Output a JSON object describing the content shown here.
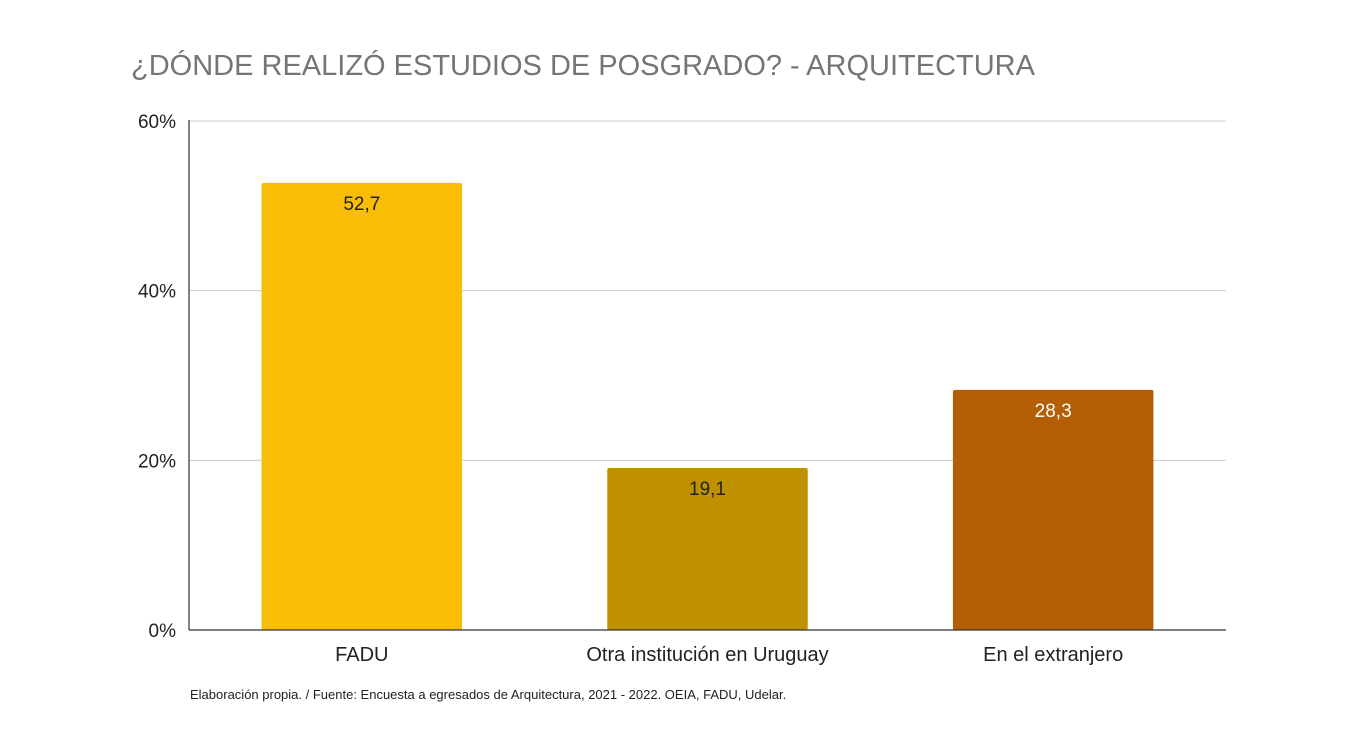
{
  "chart_data": {
    "type": "bar",
    "title": "¿DÓNDE REALIZÓ ESTUDIOS DE POSGRADO? - ARQUITECTURA",
    "categories": [
      "FADU",
      "Otra institución en Uruguay",
      "En el extranjero"
    ],
    "values": [
      52.7,
      19.1,
      28.3
    ],
    "data_labels": [
      "52,7",
      "19,1",
      "28,3"
    ],
    "bar_colors": [
      "#f8bd04",
      "#bf9000",
      "#b45f06"
    ],
    "data_label_colors": [
      "#222222",
      "#222222",
      "#ffffff"
    ],
    "ylim": [
      0,
      60
    ],
    "y_ticks": [
      {
        "value": 0,
        "label": "0%"
      },
      {
        "value": 20,
        "label": "20%"
      },
      {
        "value": 40,
        "label": "40%"
      },
      {
        "value": 60,
        "label": "60%"
      }
    ],
    "xlabel": "",
    "ylabel": "",
    "grid": true,
    "legend": "none"
  },
  "footer": {
    "source": "Elaboración propia. / Fuente: Encuesta a egresados de Arquitectura, 2021 - 2022. OEIA, FADU, Udelar."
  }
}
